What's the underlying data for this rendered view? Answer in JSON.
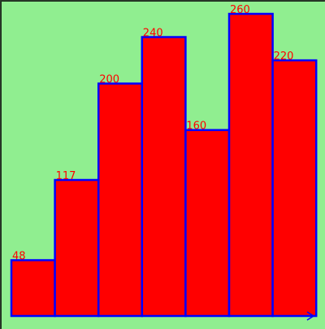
{
  "chart_data": {
    "type": "bar",
    "values": [
      48,
      117,
      200,
      240,
      160,
      260,
      220
    ],
    "ylim": [
      0,
      260
    ],
    "grid": false,
    "colors": {
      "background": "#90ee90",
      "bar_fill": "#ff0000",
      "bar_edge": "#0000ff",
      "label": "#ff0000",
      "axis_arrow": "#0000ff"
    }
  }
}
